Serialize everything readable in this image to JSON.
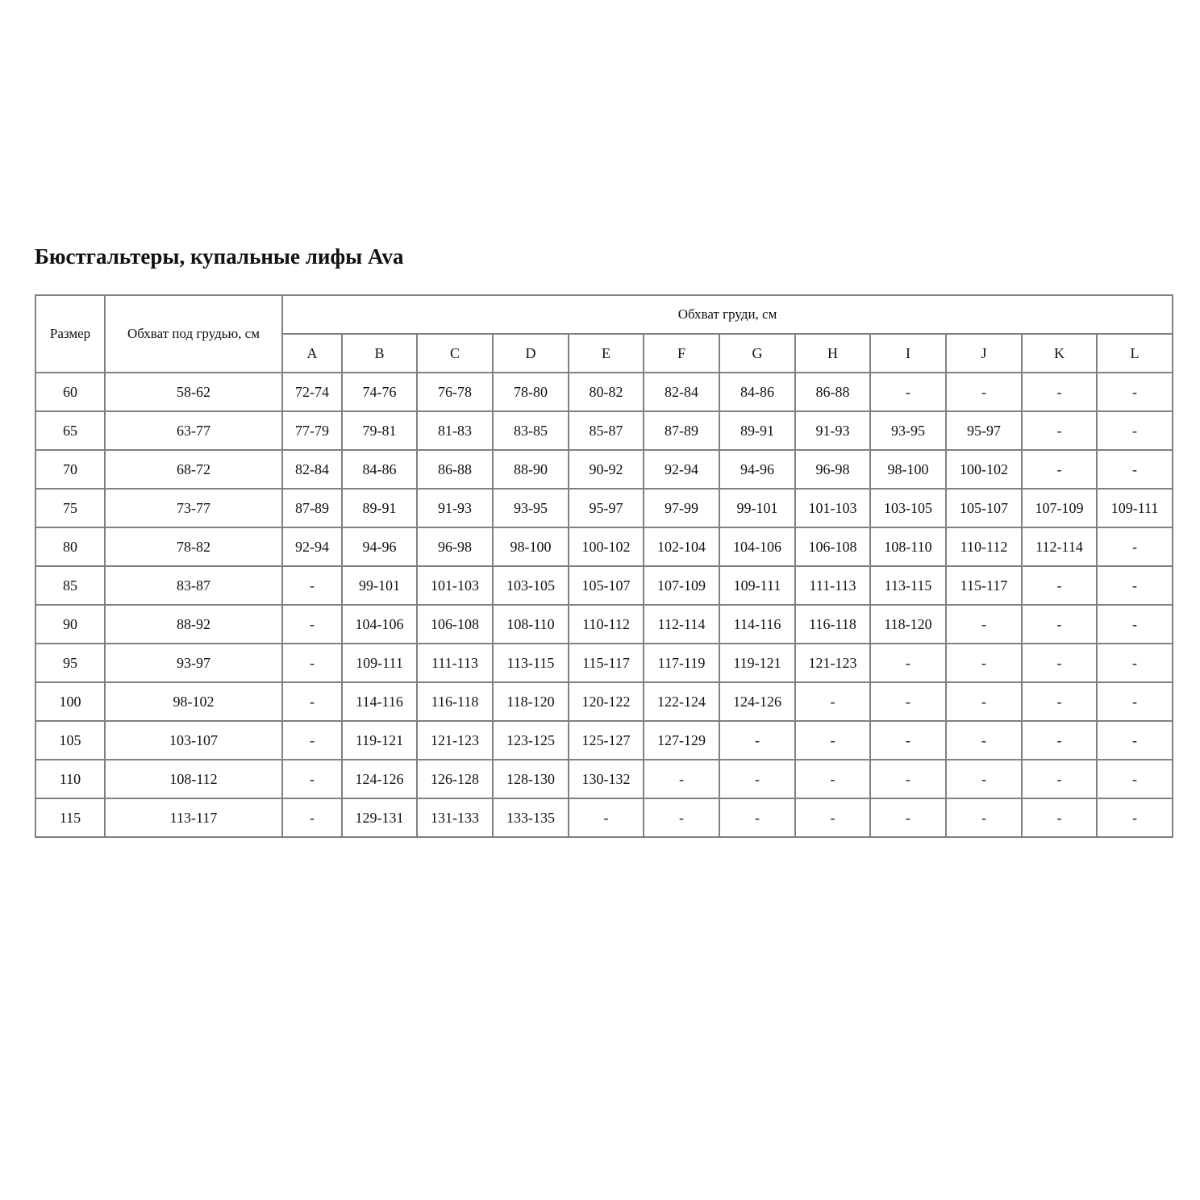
{
  "title": "Бюстгальтеры, купальные лифы Ava",
  "table": {
    "headers": {
      "size": "Размер",
      "underbust": "Обхват под грудью, см",
      "bust": "Обхват груди, см",
      "cups": [
        "A",
        "B",
        "C",
        "D",
        "E",
        "F",
        "G",
        "H",
        "I",
        "J",
        "K",
        "L"
      ]
    },
    "rows": [
      {
        "size": "60",
        "underbust": "58-62",
        "cells": [
          "72-74",
          "74-76",
          "76-78",
          "78-80",
          "80-82",
          "82-84",
          "84-86",
          "86-88",
          "-",
          "-",
          "-",
          "-"
        ]
      },
      {
        "size": "65",
        "underbust": "63-77",
        "cells": [
          "77-79",
          "79-81",
          "81-83",
          "83-85",
          "85-87",
          "87-89",
          "89-91",
          "91-93",
          "93-95",
          "95-97",
          "-",
          "-"
        ]
      },
      {
        "size": "70",
        "underbust": "68-72",
        "cells": [
          "82-84",
          "84-86",
          "86-88",
          "88-90",
          "90-92",
          "92-94",
          "94-96",
          "96-98",
          "98-100",
          "100-102",
          "-",
          "-"
        ]
      },
      {
        "size": "75",
        "underbust": "73-77",
        "cells": [
          "87-89",
          "89-91",
          "91-93",
          "93-95",
          "95-97",
          "97-99",
          "99-101",
          "101-103",
          "103-105",
          "105-107",
          "107-109",
          "109-111"
        ]
      },
      {
        "size": "80",
        "underbust": "78-82",
        "cells": [
          "92-94",
          "94-96",
          "96-98",
          "98-100",
          "100-102",
          "102-104",
          "104-106",
          "106-108",
          "108-110",
          "110-112",
          "112-114",
          "-"
        ]
      },
      {
        "size": "85",
        "underbust": "83-87",
        "cells": [
          "-",
          "99-101",
          "101-103",
          "103-105",
          "105-107",
          "107-109",
          "109-111",
          "111-113",
          "113-115",
          "115-117",
          "-",
          "-"
        ]
      },
      {
        "size": "90",
        "underbust": "88-92",
        "cells": [
          "-",
          "104-106",
          "106-108",
          "108-110",
          "110-112",
          "112-114",
          "114-116",
          "116-118",
          "118-120",
          "-",
          "-",
          "-"
        ]
      },
      {
        "size": "95",
        "underbust": "93-97",
        "cells": [
          "-",
          "109-111",
          "111-113",
          "113-115",
          "115-117",
          "117-119",
          "119-121",
          "121-123",
          "-",
          "-",
          "-",
          "-"
        ]
      },
      {
        "size": "100",
        "underbust": "98-102",
        "cells": [
          "-",
          "114-116",
          "116-118",
          "118-120",
          "120-122",
          "122-124",
          "124-126",
          "-",
          "-",
          "-",
          "-",
          "-"
        ]
      },
      {
        "size": "105",
        "underbust": "103-107",
        "cells": [
          "-",
          "119-121",
          "121-123",
          "123-125",
          "125-127",
          "127-129",
          "-",
          "-",
          "-",
          "-",
          "-",
          "-"
        ]
      },
      {
        "size": "110",
        "underbust": "108-112",
        "cells": [
          "-",
          "124-126",
          "126-128",
          "128-130",
          "130-132",
          "-",
          "-",
          "-",
          "-",
          "-",
          "-",
          "-"
        ]
      },
      {
        "size": "115",
        "underbust": "113-117",
        "cells": [
          "-",
          "129-131",
          "131-133",
          "133-135",
          "-",
          "-",
          "-",
          "-",
          "-",
          "-",
          "-",
          "-"
        ]
      }
    ]
  }
}
